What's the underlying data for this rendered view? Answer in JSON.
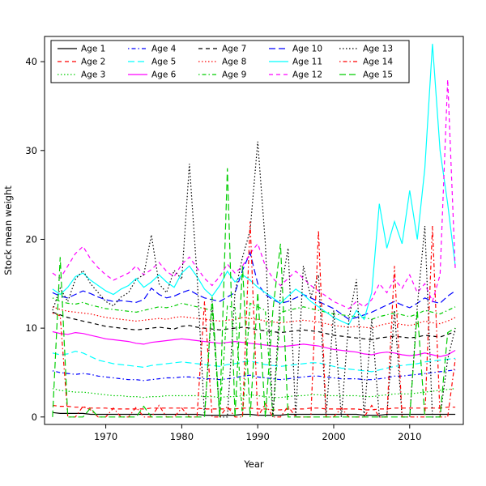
{
  "figure": {
    "background": "#ffffff"
  },
  "chart_data": {
    "type": "line",
    "title": "",
    "xlabel": "Year",
    "ylabel": "Stock mean weight",
    "xlim": [
      1963,
      2016
    ],
    "ylim": [
      0,
      42
    ],
    "xticks": [
      1970,
      1980,
      1990,
      2000,
      2010
    ],
    "yticks": [
      0,
      10,
      20,
      30,
      40
    ],
    "grid": false,
    "legend_position": "top-left-inside",
    "legend_ncol": 5,
    "legend_nrow": 3,
    "x": [
      1963,
      1964,
      1965,
      1966,
      1967,
      1968,
      1969,
      1970,
      1971,
      1972,
      1973,
      1974,
      1975,
      1976,
      1977,
      1978,
      1979,
      1980,
      1981,
      1982,
      1983,
      1984,
      1985,
      1986,
      1987,
      1988,
      1989,
      1990,
      1991,
      1992,
      1993,
      1994,
      1995,
      1996,
      1997,
      1998,
      1999,
      2000,
      2001,
      2002,
      2003,
      2004,
      2005,
      2006,
      2007,
      2008,
      2009,
      2010,
      2011,
      2012,
      2013,
      2014,
      2015,
      2016
    ],
    "series": [
      {
        "name": "Age 1",
        "color": "#000000",
        "linestyle": "solid",
        "values": [
          0.5,
          0.4,
          0.4,
          0.4,
          0.4,
          0.3,
          0.3,
          0.3,
          0.3,
          0.3,
          0.3,
          0.3,
          0.3,
          0.3,
          0.3,
          0.3,
          0.3,
          0.3,
          0.3,
          0.3,
          0.2,
          0.2,
          0.2,
          0.2,
          0.2,
          0.3,
          0.3,
          0.2,
          0.2,
          0.2,
          0.2,
          0.3,
          0.3,
          0.3,
          0.3,
          0.3,
          0.3,
          0.3,
          0.3,
          0.3,
          0.3,
          0.2,
          0.2,
          0.2,
          0.3,
          0.3,
          0.3,
          0.3,
          0.3,
          0.3,
          0.3,
          0.3,
          0.3,
          0.3
        ]
      },
      {
        "name": "Age 2",
        "color": "#ff0000",
        "linestyle": "dashed",
        "values": [
          1.3,
          1.2,
          1.2,
          1.1,
          1.1,
          1.0,
          1.0,
          1.0,
          0.9,
          0.9,
          0.9,
          0.9,
          0.9,
          1.0,
          1.0,
          1.0,
          1.0,
          1.0,
          1.0,
          1.0,
          0.9,
          0.9,
          0.9,
          0.9,
          0.9,
          1.0,
          1.0,
          0.9,
          0.9,
          0.8,
          0.8,
          0.9,
          0.9,
          0.9,
          1.0,
          1.0,
          0.9,
          0.9,
          0.9,
          0.9,
          0.9,
          0.8,
          0.8,
          0.9,
          0.9,
          1.0,
          1.0,
          1.0,
          1.0,
          1.0,
          1.0,
          1.0,
          1.1,
          1.1
        ]
      },
      {
        "name": "Age 3",
        "color": "#00cd00",
        "linestyle": "dotted",
        "values": [
          3.2,
          3.0,
          2.9,
          2.8,
          2.8,
          2.7,
          2.6,
          2.5,
          2.4,
          2.4,
          2.3,
          2.3,
          2.2,
          2.3,
          2.3,
          2.4,
          2.4,
          2.4,
          2.4,
          2.4,
          2.3,
          2.3,
          2.2,
          2.3,
          2.3,
          2.4,
          2.5,
          2.4,
          2.3,
          2.2,
          2.2,
          2.3,
          2.4,
          2.4,
          2.5,
          2.5,
          2.4,
          2.4,
          2.4,
          2.4,
          2.4,
          2.3,
          2.3,
          2.4,
          2.5,
          2.6,
          2.6,
          2.6,
          2.7,
          2.8,
          2.9,
          3.0,
          3.1,
          3.2
        ]
      },
      {
        "name": "Age 4",
        "color": "#0000ff",
        "linestyle": "dotdash",
        "values": [
          5.2,
          5.0,
          4.9,
          4.8,
          4.9,
          4.8,
          4.6,
          4.5,
          4.4,
          4.3,
          4.2,
          4.2,
          4.1,
          4.2,
          4.3,
          4.4,
          4.4,
          4.5,
          4.5,
          4.4,
          4.3,
          4.3,
          4.2,
          4.3,
          4.4,
          4.6,
          4.7,
          4.5,
          4.4,
          4.3,
          4.2,
          4.3,
          4.4,
          4.5,
          4.6,
          4.6,
          4.5,
          4.4,
          4.3,
          4.3,
          4.3,
          4.2,
          4.2,
          4.3,
          4.4,
          4.6,
          4.6,
          4.7,
          4.8,
          4.9,
          5.0,
          5.1,
          5.2,
          5.3
        ]
      },
      {
        "name": "Age 5",
        "color": "#00ffff",
        "linestyle": "longdash",
        "values": [
          7.2,
          7.0,
          7.1,
          7.4,
          7.2,
          6.8,
          6.4,
          6.2,
          6.0,
          5.9,
          5.8,
          5.7,
          5.6,
          5.8,
          5.9,
          6.0,
          6.1,
          6.2,
          6.1,
          6.0,
          5.9,
          5.8,
          5.7,
          5.9,
          6.0,
          6.2,
          6.3,
          6.1,
          5.9,
          5.8,
          5.7,
          5.8,
          5.9,
          6.0,
          6.1,
          6.1,
          5.9,
          5.7,
          5.5,
          5.4,
          5.3,
          5.2,
          5.1,
          5.3,
          5.5,
          5.7,
          5.8,
          5.9,
          6.0,
          6.2,
          6.3,
          6.4,
          6.5,
          6.6
        ]
      },
      {
        "name": "Age 6",
        "color": "#ff00ff",
        "linestyle": "solid",
        "values": [
          9.6,
          9.4,
          9.3,
          9.5,
          9.4,
          9.2,
          9.0,
          8.8,
          8.7,
          8.6,
          8.5,
          8.3,
          8.2,
          8.4,
          8.5,
          8.6,
          8.7,
          8.8,
          8.7,
          8.6,
          8.5,
          8.4,
          8.3,
          8.4,
          8.5,
          8.4,
          8.3,
          8.2,
          8.1,
          8.0,
          7.9,
          8.0,
          8.1,
          8.2,
          8.1,
          8.0,
          7.8,
          7.6,
          7.5,
          7.4,
          7.3,
          7.1,
          7.0,
          7.2,
          7.3,
          7.2,
          7.0,
          6.9,
          7.0,
          7.2,
          7.0,
          6.8,
          7.0,
          7.5
        ]
      },
      {
        "name": "Age 7",
        "color": "#000000",
        "linestyle": "dashed",
        "values": [
          11.8,
          11.5,
          11.2,
          11.0,
          10.8,
          10.6,
          10.4,
          10.2,
          10.1,
          10.0,
          9.9,
          9.8,
          9.9,
          10.0,
          10.1,
          10.0,
          9.9,
          10.2,
          10.3,
          10.1,
          10.0,
          9.9,
          9.8,
          9.9,
          10.0,
          10.1,
          10.0,
          9.8,
          9.7,
          9.6,
          9.5,
          9.6,
          9.7,
          9.8,
          9.7,
          9.6,
          9.4,
          9.2,
          9.1,
          9.0,
          8.9,
          8.8,
          8.7,
          8.9,
          9.0,
          9.1,
          9.0,
          8.9,
          9.0,
          9.2,
          9.1,
          9.0,
          9.3,
          9.6
        ]
      },
      {
        "name": "Age 8",
        "color": "#ff0000",
        "linestyle": "dotted",
        "values": [
          12.4,
          12.1,
          11.9,
          11.8,
          11.7,
          11.6,
          11.4,
          11.2,
          11.1,
          11.0,
          10.9,
          10.8,
          10.9,
          11.0,
          11.1,
          11.0,
          11.2,
          11.3,
          11.2,
          11.1,
          11.0,
          10.9,
          10.8,
          10.9,
          11.0,
          11.2,
          11.1,
          11.0,
          10.8,
          10.7,
          10.6,
          10.7,
          10.8,
          10.9,
          10.8,
          10.7,
          10.5,
          10.3,
          10.2,
          10.1,
          10.2,
          10.1,
          10.0,
          10.3,
          10.5,
          10.6,
          10.4,
          10.3,
          10.5,
          10.8,
          10.6,
          10.5,
          10.8,
          11.2
        ]
      },
      {
        "name": "Age 9",
        "color": "#00cd00",
        "linestyle": "dotdash",
        "values": [
          13.4,
          13.0,
          12.8,
          12.7,
          12.9,
          12.6,
          12.4,
          12.2,
          12.1,
          12.0,
          11.9,
          11.8,
          12.0,
          12.2,
          12.4,
          12.3,
          12.5,
          12.8,
          12.6,
          12.4,
          12.2,
          12.0,
          0.0,
          12.5,
          12.3,
          0.0,
          12.8,
          12.4,
          12.0,
          0.0,
          11.8,
          12.0,
          12.2,
          12.4,
          12.2,
          12.0,
          11.8,
          11.6,
          11.5,
          11.4,
          11.3,
          11.2,
          11.0,
          11.3,
          11.5,
          11.7,
          11.5,
          11.3,
          11.6,
          12.0,
          11.8,
          11.6,
          12.0,
          12.4
        ]
      },
      {
        "name": "Age 10",
        "color": "#0000ff",
        "linestyle": "longdash",
        "values": [
          14.0,
          13.6,
          13.4,
          13.8,
          14.2,
          13.9,
          13.5,
          13.2,
          13.0,
          13.1,
          13.0,
          12.9,
          13.2,
          14.5,
          13.8,
          13.4,
          13.6,
          14.0,
          14.3,
          13.8,
          13.4,
          13.2,
          13.0,
          13.5,
          14.0,
          16.5,
          18.5,
          15.0,
          13.8,
          13.2,
          12.8,
          13.0,
          13.4,
          13.8,
          13.4,
          13.0,
          12.6,
          12.2,
          11.6,
          11.0,
          11.2,
          11.5,
          11.8,
          12.2,
          12.6,
          13.0,
          12.6,
          12.3,
          12.8,
          13.4,
          13.0,
          12.8,
          13.6,
          14.2
        ]
      },
      {
        "name": "Age 11",
        "color": "#00ffff",
        "linestyle": "solid",
        "values": [
          14.4,
          13.8,
          14.6,
          15.8,
          16.2,
          15.4,
          14.8,
          14.2,
          13.8,
          14.4,
          14.8,
          15.6,
          14.6,
          15.2,
          16.0,
          15.2,
          14.6,
          16.2,
          17.0,
          15.8,
          14.4,
          13.6,
          14.8,
          16.4,
          15.2,
          16.0,
          15.4,
          14.6,
          14.0,
          13.4,
          12.8,
          13.6,
          14.4,
          13.8,
          13.0,
          12.4,
          11.8,
          11.2,
          10.8,
          10.4,
          12.0,
          11.0,
          14.0,
          24.0,
          19.0,
          22.0,
          19.5,
          25.5,
          20.0,
          28.0,
          42.0,
          30.0,
          24.0,
          17.0
        ]
      },
      {
        "name": "Age 12",
        "color": "#ff00ff",
        "linestyle": "dashed",
        "values": [
          16.2,
          15.6,
          17.0,
          18.4,
          19.2,
          17.8,
          16.8,
          16.0,
          15.4,
          15.8,
          16.2,
          17.0,
          16.0,
          16.6,
          17.4,
          16.4,
          15.8,
          17.2,
          18.0,
          16.8,
          15.6,
          14.8,
          15.8,
          17.2,
          16.2,
          17.0,
          18.4,
          19.5,
          17.0,
          15.6,
          14.8,
          15.6,
          16.4,
          15.6,
          14.8,
          14.2,
          13.6,
          13.0,
          12.6,
          12.2,
          13.0,
          12.4,
          13.2,
          15.0,
          14.0,
          15.5,
          14.5,
          16.0,
          14.0,
          15.0,
          13.0,
          16.0,
          38.0,
          16.5
        ]
      },
      {
        "name": "Age 13",
        "color": "#000000",
        "linestyle": "dotted",
        "values": [
          12.0,
          14.5,
          13.0,
          15.5,
          16.5,
          15.0,
          14.0,
          13.0,
          12.5,
          13.5,
          14.0,
          15.5,
          16.0,
          20.5,
          15.0,
          14.0,
          16.5,
          15.5,
          28.5,
          16.0,
          0.0,
          13.0,
          0.0,
          0.0,
          14.0,
          18.0,
          21.0,
          31.0,
          19.5,
          0.0,
          14.0,
          19.0,
          0.0,
          17.0,
          13.5,
          16.0,
          0.0,
          12.0,
          0.0,
          11.0,
          15.5,
          0.0,
          11.0,
          0.0,
          0.0,
          12.0,
          0.0,
          0.0,
          12.5,
          21.5,
          0.0,
          0.0,
          6.5,
          10.0
        ]
      },
      {
        "name": "Age 14",
        "color": "#ff0000",
        "linestyle": "dotdash",
        "values": [
          11.7,
          11.4,
          0.0,
          0.0,
          1.2,
          0.8,
          0.0,
          0.0,
          1.0,
          0.0,
          0.0,
          1.1,
          0.0,
          0.0,
          1.3,
          0.0,
          0.0,
          1.0,
          0.0,
          0.0,
          13.0,
          0.0,
          0.0,
          1.2,
          0.0,
          0.0,
          22.0,
          0.0,
          1.5,
          0.0,
          0.0,
          1.2,
          0.0,
          0.0,
          0.0,
          21.0,
          0.0,
          0.0,
          1.0,
          0.0,
          0.0,
          0.0,
          1.3,
          0.0,
          0.0,
          17.0,
          0.0,
          0.0,
          0.0,
          0.0,
          21.5,
          0.0,
          0.0,
          6.5
        ]
      },
      {
        "name": "Age 15",
        "color": "#00cd00",
        "linestyle": "longdash",
        "values": [
          0.0,
          18.0,
          0.0,
          0.0,
          0.0,
          1.0,
          0.0,
          0.0,
          0.0,
          0.0,
          0.0,
          0.0,
          1.2,
          0.0,
          0.0,
          0.0,
          0.0,
          0.0,
          0.0,
          0.0,
          0.0,
          13.5,
          0.0,
          28.0,
          0.0,
          17.0,
          0.0,
          14.0,
          0.0,
          12.0,
          19.5,
          0.0,
          0.0,
          0.0,
          0.0,
          0.0,
          0.0,
          0.0,
          0.0,
          0.0,
          0.0,
          0.0,
          0.0,
          0.0,
          0.0,
          0.0,
          0.0,
          0.0,
          12.0,
          0.0,
          0.0,
          0.0,
          9.5,
          10.0
        ]
      }
    ]
  }
}
